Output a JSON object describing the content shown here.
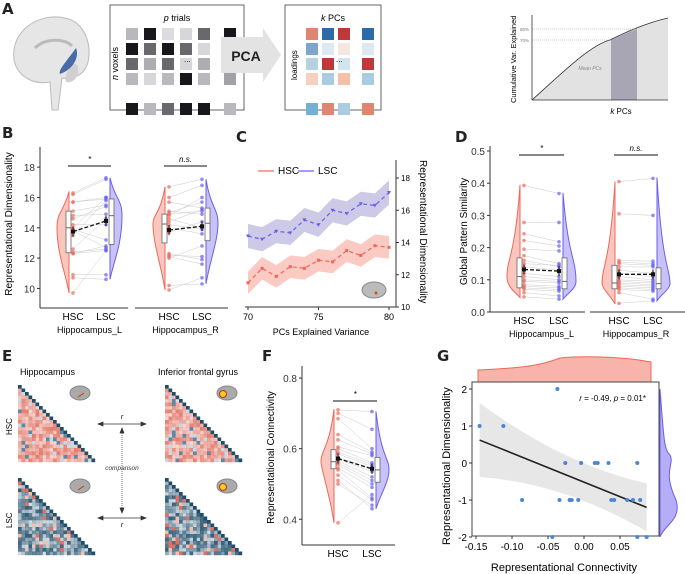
{
  "panel_labels": [
    "A",
    "B",
    "C",
    "D",
    "E",
    "F",
    "G"
  ],
  "colors": {
    "hsc": "#f0675a",
    "hsc_fill": "#f8b4aa",
    "lsc": "#6a5ef0",
    "lsc_fill": "#b5adf7",
    "brain_highlight": "#4a6aa8",
    "scatter": "#4a86d4",
    "heat_red": "#e07060",
    "heat_blue": "#1f4e6b"
  },
  "panel_a": {
    "matrix_title_italic": "p",
    "matrix_title": " trials",
    "matrix_ylabel_italic": "n",
    "matrix_ylabel": " voxels",
    "pca_label": "PCA",
    "loadings_title_italic": "k",
    "loadings_title": " PCs",
    "loadings_ylabel": "loadings",
    "ellipsis": "...",
    "curve_ylabel": "Cumulative Var. Explained",
    "curve_xlabel_italic": "k",
    "curve_xlabel": " PCs",
    "tick_80": "80%",
    "tick_70": "70%",
    "band_label": "Mean PCs"
  },
  "chart_data": [
    {
      "id": "B",
      "type": "raincloud",
      "ylabel": "Representational Dimensionality",
      "ylim": [
        9.5,
        19
      ],
      "yticks": [
        10,
        12,
        14,
        16,
        18
      ],
      "categories": [
        "HSC",
        "LSC"
      ],
      "facets": [
        {
          "name": "Hippocampus_L",
          "significance": "*",
          "HSC": {
            "mean": 13.75,
            "median": 14.0,
            "q1": 12.35,
            "q3": 15.1,
            "min": 9.7,
            "max": 16.4,
            "points": [
              16.3,
              16.2,
              15.7,
              15.7,
              15.1,
              14.8,
              14.6,
              14.2,
              14.0,
              13.9,
              13.8,
              13.5,
              12.6,
              12.4,
              12.3,
              12.3,
              10.9,
              10.7,
              9.7
            ]
          },
          "LSC": {
            "mean": 14.45,
            "median": 14.8,
            "q1": 12.9,
            "q3": 15.9,
            "min": 10.6,
            "max": 17.3,
            "points": [
              17.3,
              17.2,
              16.0,
              15.9,
              15.5,
              14.9,
              15.4,
              14.2,
              16.0,
              13.2,
              12.7,
              15.8,
              14.6,
              12.6,
              12.8,
              12.5,
              10.9,
              10.6,
              12.5
            ]
          }
        },
        {
          "name": "Hippocampus_R",
          "significance": "n.s.",
          "HSC": {
            "mean": 13.85,
            "median": 14.25,
            "q1": 13.0,
            "q3": 14.9,
            "min": 9.9,
            "max": 16.7,
            "points": [
              16.7,
              16.0,
              15.7,
              15.1,
              15.0,
              14.9,
              14.8,
              14.6,
              14.4,
              14.2,
              14.0,
              13.7,
              12.3,
              12.2,
              12.1,
              12.0,
              10.2,
              9.9
            ]
          },
          "LSC": {
            "mean": 14.1,
            "median": 14.3,
            "q1": 13.15,
            "q3": 15.3,
            "min": 10.3,
            "max": 17.2,
            "points": [
              17.2,
              16.8,
              15.3,
              14.9,
              15.7,
              15.1,
              16.0,
              14.0,
              15.2,
              13.9,
              13.6,
              14.4,
              11.9,
              12.1,
              11.6,
              12.8,
              10.3,
              10.7
            ]
          }
        }
      ]
    },
    {
      "id": "C",
      "type": "line",
      "xlabel": "PCs Explained Variance",
      "ylabel": "Representational Dimensionality",
      "xlim": [
        70,
        80
      ],
      "xticks": [
        70,
        75,
        80
      ],
      "ylim": [
        10,
        18.8
      ],
      "yticks": [
        10,
        12,
        14,
        16,
        18
      ],
      "yaxis_side": "right",
      "legend_position": "top-left",
      "x": [
        70,
        71,
        72,
        73,
        74,
        75,
        76,
        77,
        78,
        79,
        80
      ],
      "series": [
        {
          "name": "HSC",
          "values": [
            11.5,
            12.4,
            11.9,
            12.5,
            12.4,
            12.9,
            12.8,
            13.5,
            13.2,
            13.8,
            13.7
          ],
          "band": 0.7
        },
        {
          "name": "LSC",
          "values": [
            14.4,
            14.2,
            14.7,
            14.6,
            15.4,
            15.1,
            16.0,
            15.8,
            16.4,
            16.3,
            17.1
          ],
          "band": 0.75
        }
      ]
    },
    {
      "id": "D",
      "type": "raincloud",
      "ylabel": "Global Pattern Similarity",
      "ylim": [
        0,
        0.5
      ],
      "yticks": [
        0.0,
        0.1,
        0.2,
        0.3,
        0.4,
        0.5
      ],
      "ytick_labels": [
        "0.0",
        "0.1",
        "0.2",
        "0.3",
        "0.4",
        "0.5"
      ],
      "categories": [
        "HSC",
        "LSC"
      ],
      "facets": [
        {
          "name": "Hippocampus_L",
          "significance": "*",
          "HSC": {
            "mean": 0.132,
            "median": 0.11,
            "q1": 0.075,
            "q3": 0.168,
            "min": 0.045,
            "max": 0.395,
            "points": [
              0.393,
              0.278,
              0.243,
              0.222,
              0.195,
              0.175,
              0.16,
              0.15,
              0.14,
              0.12,
              0.11,
              0.1,
              0.095,
              0.085,
              0.08,
              0.075,
              0.07,
              0.06,
              0.047
            ]
          },
          "LSC": {
            "mean": 0.127,
            "median": 0.095,
            "q1": 0.072,
            "q3": 0.168,
            "min": 0.04,
            "max": 0.37,
            "points": [
              0.368,
              0.278,
              0.218,
              0.205,
              0.19,
              0.15,
              0.14,
              0.145,
              0.13,
              0.11,
              0.1,
              0.095,
              0.09,
              0.08,
              0.075,
              0.07,
              0.065,
              0.05,
              0.04
            ]
          }
        },
        {
          "name": "Hippocampus_R",
          "significance": "n.s.",
          "HSC": {
            "mean": 0.117,
            "median": 0.09,
            "q1": 0.072,
            "q3": 0.145,
            "min": 0.025,
            "max": 0.405,
            "points": [
              0.405,
              0.305,
              0.16,
              0.155,
              0.15,
              0.14,
              0.13,
              0.12,
              0.11,
              0.1,
              0.095,
              0.09,
              0.085,
              0.08,
              0.075,
              0.07,
              0.06,
              0.027
            ]
          },
          "LSC": {
            "mean": 0.117,
            "median": 0.088,
            "q1": 0.072,
            "q3": 0.137,
            "min": 0.035,
            "max": 0.418,
            "points": [
              0.415,
              0.3,
              0.158,
              0.15,
              0.145,
              0.14,
              0.12,
              0.11,
              0.1,
              0.095,
              0.09,
              0.085,
              0.08,
              0.075,
              0.07,
              0.065,
              0.04,
              0.035
            ]
          }
        }
      ]
    },
    {
      "id": "F",
      "type": "raincloud",
      "ylabel": "Representational Connectivity",
      "ylim": [
        0.33,
        0.82
      ],
      "yticks": [
        0.4,
        0.6,
        0.8
      ],
      "ytick_labels": [
        "0.4",
        "0.6",
        "0.8"
      ],
      "categories": [
        "HSC",
        "LSC"
      ],
      "facets": [
        {
          "name": "",
          "significance": "*",
          "HSC": {
            "mean": 0.572,
            "median": 0.563,
            "q1": 0.543,
            "q3": 0.597,
            "min": 0.39,
            "max": 0.712,
            "points": [
              0.71,
              0.7,
              0.685,
              0.64,
              0.625,
              0.605,
              0.6,
              0.59,
              0.585,
              0.575,
              0.57,
              0.565,
              0.56,
              0.555,
              0.545,
              0.54,
              0.525,
              0.51,
              0.5,
              0.39
            ]
          },
          "LSC": {
            "mean": 0.543,
            "median": 0.54,
            "q1": 0.505,
            "q3": 0.575,
            "min": 0.43,
            "max": 0.705,
            "points": [
              0.705,
              0.655,
              0.6,
              0.59,
              0.585,
              0.58,
              0.56,
              0.555,
              0.55,
              0.545,
              0.535,
              0.52,
              0.51,
              0.5,
              0.49,
              0.46,
              0.455,
              0.43,
              0.44,
              0.47
            ]
          }
        }
      ]
    },
    {
      "id": "G",
      "type": "scatter",
      "xlabel": "Representational Connectivity",
      "ylabel": "Representational Dimensionality",
      "xlim": [
        -0.155,
        0.09
      ],
      "xticks": [
        -0.15,
        -0.1,
        -0.05,
        0.0,
        0.05
      ],
      "xtick_labels": [
        "-0.15",
        "-0.10",
        "-0.05",
        "0.00",
        "0.05"
      ],
      "ylim": [
        -2.15,
        2.15
      ],
      "yticks": [
        -2,
        -1,
        0,
        1,
        2
      ],
      "annotation": {
        "r_label": "r",
        "r_value": " = -0.49, ",
        "p_label": "p",
        "p_value": " = 0.01*"
      },
      "points": [
        [
          -0.145,
          1
        ],
        [
          -0.112,
          1
        ],
        [
          -0.086,
          -1
        ],
        [
          -0.044,
          -2
        ],
        [
          -0.037,
          2
        ],
        [
          -0.034,
          -1
        ],
        [
          -0.026,
          0
        ],
        [
          -0.02,
          -1
        ],
        [
          -0.017,
          -1
        ],
        [
          -0.008,
          -1
        ],
        [
          -0.004,
          0
        ],
        [
          0.015,
          0
        ],
        [
          0.019,
          0
        ],
        [
          0.034,
          0
        ],
        [
          0.038,
          -1
        ],
        [
          0.042,
          -1
        ],
        [
          0.06,
          -1
        ],
        [
          0.068,
          -1
        ],
        [
          0.074,
          0
        ],
        [
          0.074,
          -2
        ],
        [
          0.078,
          -1
        ],
        [
          0.087,
          -2
        ]
      ],
      "fit": {
        "x": [
          -0.145,
          0.087
        ],
        "y": [
          0.62,
          -1.2
        ],
        "ci_at_ends": [
          1.0,
          0.65
        ]
      },
      "marginal_x": "top",
      "marginal_y": "right"
    }
  ],
  "panel_e": {
    "col_titles": [
      "Hippocampus",
      "Inferior frontal gyrus"
    ],
    "row_labels": [
      "HSC",
      "LSC"
    ],
    "arrow_label": "r",
    "comparison_label": "comparison"
  }
}
